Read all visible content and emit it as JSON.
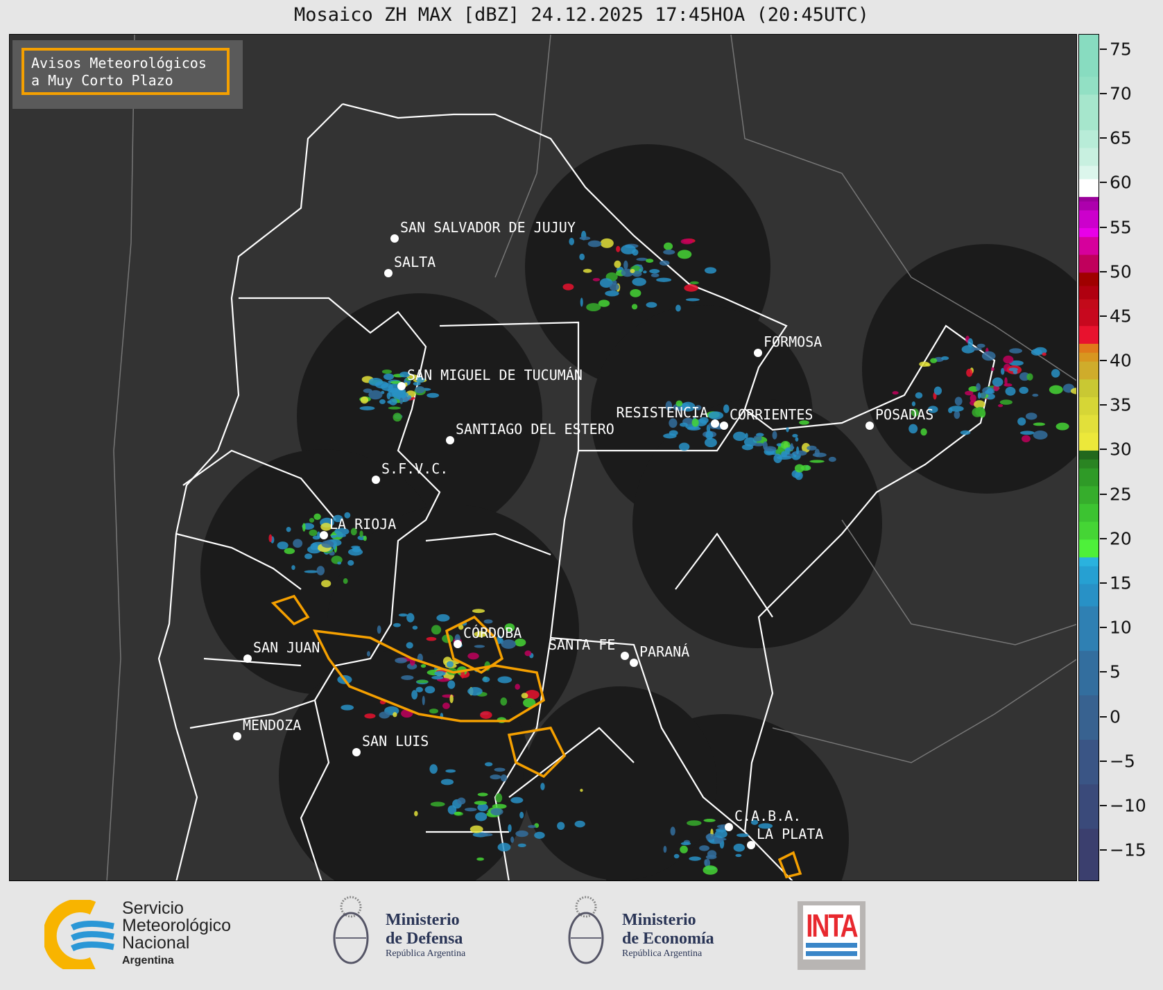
{
  "title": "Mosaico ZH MAX [dBZ] 24.12.2025 17:45HOA (20:45UTC)",
  "legend_box": {
    "line1": "Avisos Meteorológicos",
    "line2": "a Muy Corto Plazo",
    "border_color": "#f5a000"
  },
  "colorbar": {
    "unit": "dBZ",
    "range": [
      -18.5,
      76.7
    ],
    "ticks": [
      "75",
      "70",
      "65",
      "60",
      "55",
      "50",
      "45",
      "40",
      "35",
      "30",
      "25",
      "20",
      "15",
      "10",
      "5",
      "0",
      "−5",
      "−10",
      "−15"
    ],
    "tick_values": [
      75,
      70,
      65,
      60,
      55,
      50,
      45,
      40,
      35,
      30,
      25,
      20,
      15,
      10,
      5,
      0,
      -5,
      -10,
      -15
    ],
    "colors": [
      [
        -18.5,
        "#3b3f6e"
      ],
      [
        -12.5,
        "#3a4a7a"
      ],
      [
        -7.5,
        "#3a5585"
      ],
      [
        -2.5,
        "#386290"
      ],
      [
        2.5,
        "#336e9e"
      ],
      [
        7.5,
        "#2f80b3"
      ],
      [
        12.5,
        "#2891c6"
      ],
      [
        15,
        "#26a0d2"
      ],
      [
        17,
        "#2ab2de"
      ],
      [
        18,
        "#4ef03a"
      ],
      [
        20,
        "#45d535"
      ],
      [
        22,
        "#3cc331"
      ],
      [
        24,
        "#36ad2c"
      ],
      [
        26,
        "#2f9a27"
      ],
      [
        28,
        "#2a8422"
      ],
      [
        29,
        "#22681d"
      ],
      [
        30,
        "#ece83a"
      ],
      [
        32,
        "#e2e03a"
      ],
      [
        34,
        "#d6d636"
      ],
      [
        36,
        "#c9c833"
      ],
      [
        38,
        "#cfac2b"
      ],
      [
        40,
        "#d8961f"
      ],
      [
        41,
        "#e0791a"
      ],
      [
        42,
        "#e8122e"
      ],
      [
        44,
        "#c7081e"
      ],
      [
        46,
        "#c30a1a"
      ],
      [
        47,
        "#b00010"
      ],
      [
        48.5,
        "#a00000"
      ],
      [
        50,
        "#c0005c"
      ],
      [
        52,
        "#d6009c"
      ],
      [
        54,
        "#e800e8"
      ],
      [
        55,
        "#cc00cc"
      ],
      [
        57,
        "#ad00ad"
      ],
      [
        58,
        "#9a009a"
      ],
      [
        58.5,
        "#ffffff"
      ],
      [
        60.5,
        "#dcf6ec"
      ],
      [
        62,
        "#c8f0e0"
      ],
      [
        64,
        "#b8ecd8"
      ],
      [
        66,
        "#a6e6cc"
      ],
      [
        70,
        "#92e0c4"
      ],
      [
        72,
        "#88dcc0"
      ]
    ]
  },
  "cities": [
    {
      "name": "SAN SALVADOR DE JUJUY"
    },
    {
      "name": "SALTA"
    },
    {
      "name": "SAN MIGUEL DE TUCUMÁN"
    },
    {
      "name": "SANTIAGO DEL ESTERO"
    },
    {
      "name": "S.F.V.C."
    },
    {
      "name": "LA RIOJA"
    },
    {
      "name": "SAN JUAN"
    },
    {
      "name": "MENDOZA"
    },
    {
      "name": "SAN LUIS"
    },
    {
      "name": "CÓRDOBA"
    },
    {
      "name": "SANTA FE"
    },
    {
      "name": "PARANÁ"
    },
    {
      "name": "RESISTENCIA"
    },
    {
      "name": "CORRIENTES"
    },
    {
      "name": "FORMOSA"
    },
    {
      "name": "POSADAS"
    },
    {
      "name": "C.A.B.A."
    },
    {
      "name": "LA PLATA"
    }
  ],
  "logos": {
    "smn": {
      "line1": "Servicio",
      "line2": "Meteorológico",
      "line3": "Nacional",
      "line4": "Argentina"
    },
    "defensa": {
      "line1": "Ministerio",
      "line2": "de Defensa",
      "line3": "República Argentina"
    },
    "economia": {
      "line1": "Ministerio",
      "line2": "de Economía",
      "line3": "República Argentina"
    },
    "inta": {
      "text": "INTA"
    }
  }
}
